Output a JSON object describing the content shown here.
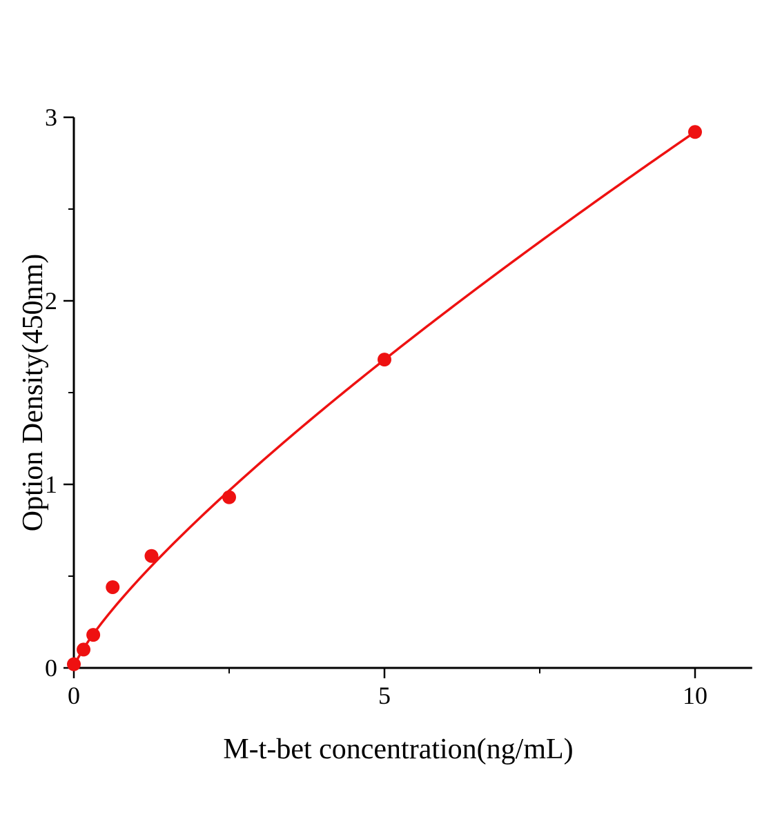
{
  "chart_data": {
    "type": "scatter",
    "title": "",
    "xlabel": "M-t-bet concentration(ng/mL)",
    "ylabel": "Option Density(450nm)",
    "points": {
      "x": [
        0,
        0.156,
        0.3125,
        0.625,
        1.25,
        2.5,
        5,
        10
      ],
      "y": [
        0.02,
        0.1,
        0.18,
        0.44,
        0.61,
        0.93,
        1.68,
        2.92
      ]
    },
    "fit_curve": {
      "type": "power",
      "a": 0.465,
      "b": 0.798,
      "x_start": 0.005,
      "x_end": 10
    },
    "xlim": [
      0,
      10.92
    ],
    "ylim": [
      0,
      3
    ],
    "x_major_ticks": [
      0,
      5,
      10
    ],
    "x_minor_ticks": [
      2.5,
      7.5
    ],
    "y_major_ticks": [
      0,
      1,
      2,
      3
    ],
    "y_minor_ticks": [
      0.5,
      1.5,
      2.5
    ],
    "grid": false,
    "legend": null,
    "colors": {
      "point_color": "#ee1111",
      "line_color": "#ee1111",
      "axis_color": "#000000",
      "tick_label_color": "#000000"
    }
  }
}
